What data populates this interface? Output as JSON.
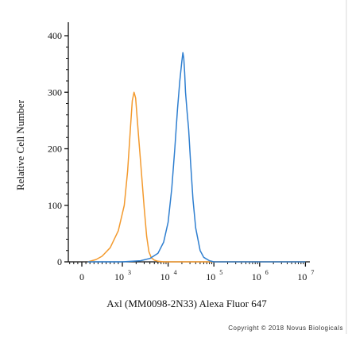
{
  "chart_data": {
    "type": "line",
    "title": "",
    "xlabel": "Axl (MM0098-2N33) Alexa Fluor 647",
    "ylabel": "Relative Cell Number",
    "x_scale": "log",
    "x_ticks": [
      {
        "base": "0",
        "exp": ""
      },
      {
        "base": "10",
        "exp": "3"
      },
      {
        "base": "10",
        "exp": "4"
      },
      {
        "base": "10",
        "exp": "5"
      },
      {
        "base": "10",
        "exp": "6"
      },
      {
        "base": "10",
        "exp": "7"
      }
    ],
    "y_ticks": [
      "0",
      "100",
      "200",
      "300",
      "400"
    ],
    "ylim": [
      0,
      400
    ],
    "grid": false,
    "legend": "none",
    "series": [
      {
        "color": "#f39a2e",
        "x": [
          150,
          350,
          500,
          700,
          900,
          1100,
          1300,
          1500,
          1650,
          1800,
          1950,
          2100,
          2300,
          2600,
          3000,
          3400,
          3800,
          4300,
          5000,
          6000,
          8000,
          12000,
          30000,
          100000,
          1000000,
          10000000
        ],
        "y": [
          0,
          4,
          10,
          25,
          55,
          100,
          160,
          235,
          285,
          300,
          290,
          255,
          215,
          160,
          95,
          45,
          18,
          7,
          3,
          1,
          0,
          0,
          0,
          0,
          0,
          0
        ]
      },
      {
        "color": "#2f7fd0",
        "x": [
          150,
          1000,
          2500,
          4000,
          6000,
          8000,
          10000,
          12000,
          14000,
          16000,
          18000,
          20000,
          21000,
          22000,
          23000,
          24000,
          26000,
          28000,
          31000,
          35000,
          40000,
          50000,
          60000,
          80000,
          100000,
          1000000,
          10000000
        ],
        "y": [
          0,
          0,
          2,
          6,
          15,
          35,
          70,
          130,
          200,
          270,
          320,
          355,
          370,
          360,
          335,
          300,
          265,
          235,
          175,
          110,
          60,
          20,
          8,
          2,
          0,
          0,
          0
        ]
      }
    ]
  },
  "copyright": "Copyright © 2018 Novus Biologicals",
  "colors": {
    "axis": "#111111",
    "background": "#ffffff",
    "border": "#d8d8d8"
  }
}
